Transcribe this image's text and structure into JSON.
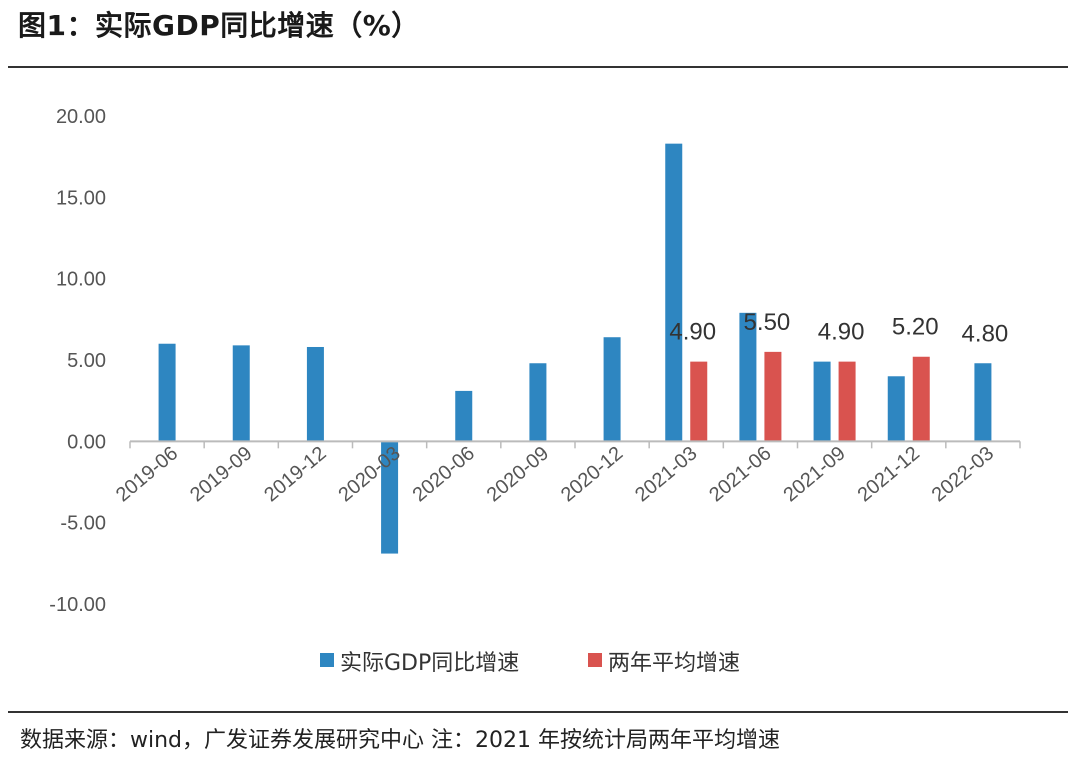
{
  "header": {
    "title": "图1：实际GDP同比增速（%）"
  },
  "footer": {
    "source": "数据来源：wind，广发证券发展研究中心  注：2021 年按统计局两年平均增速"
  },
  "colors": {
    "primary": "#2e86c1",
    "secondary": "#d9534f",
    "axis": "#bbbbbb"
  },
  "chart_data": {
    "type": "bar",
    "categories": [
      "2019-06",
      "2019-09",
      "2019-12",
      "2020-03",
      "2020-06",
      "2020-09",
      "2020-12",
      "2021-03",
      "2021-06",
      "2021-09",
      "2021-12",
      "2022-03"
    ],
    "series": [
      {
        "name": "实际GDP同比增速",
        "values": [
          6.0,
          5.9,
          5.8,
          -6.9,
          3.1,
          4.8,
          6.4,
          18.3,
          7.9,
          4.9,
          4.0,
          4.8
        ]
      },
      {
        "name": "两年平均增速",
        "values": [
          null,
          null,
          null,
          null,
          null,
          null,
          null,
          4.9,
          5.5,
          4.9,
          5.2,
          null
        ]
      }
    ],
    "data_labels": [
      {
        "category": "2021-03",
        "text": "4.90"
      },
      {
        "category": "2021-06",
        "text": "5.50"
      },
      {
        "category": "2021-09",
        "text": "4.90"
      },
      {
        "category": "2021-12",
        "text": "5.20"
      },
      {
        "category": "2022-03",
        "text": "4.80"
      }
    ],
    "y_ticks": [
      "20.00",
      "15.00",
      "10.00",
      "5.00",
      "0.00",
      "-5.00",
      "-10.00"
    ],
    "ylim": [
      -10,
      20
    ],
    "legend": "bottom-center",
    "grid": false
  }
}
